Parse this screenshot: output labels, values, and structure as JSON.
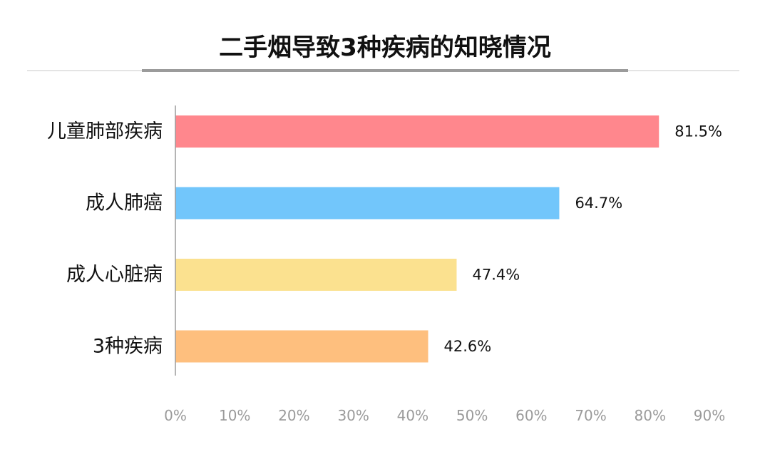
{
  "chart_data": {
    "type": "bar",
    "orientation": "horizontal",
    "title": "二手烟导致3种疾病的知晓情况",
    "categories": [
      "儿童肺部疾病",
      "成人肺癌",
      "成人心脏病",
      "3种疾病"
    ],
    "values": [
      81.5,
      64.7,
      47.4,
      42.6
    ],
    "value_labels": [
      "81.5%",
      "64.7%",
      "47.4%",
      "42.6%"
    ],
    "colors": [
      "#ff878d",
      "#72c6fb",
      "#fbe18f",
      "#febf7e"
    ],
    "xlim": [
      0,
      90
    ],
    "x_ticks": [
      0,
      10,
      20,
      30,
      40,
      50,
      60,
      70,
      80,
      90
    ],
    "x_tick_labels": [
      "0%",
      "10%",
      "20%",
      "30%",
      "40%",
      "50%",
      "60%",
      "70%",
      "80%",
      "90%"
    ],
    "xlabel": "",
    "ylabel": "",
    "grid": false,
    "legend": "none"
  }
}
